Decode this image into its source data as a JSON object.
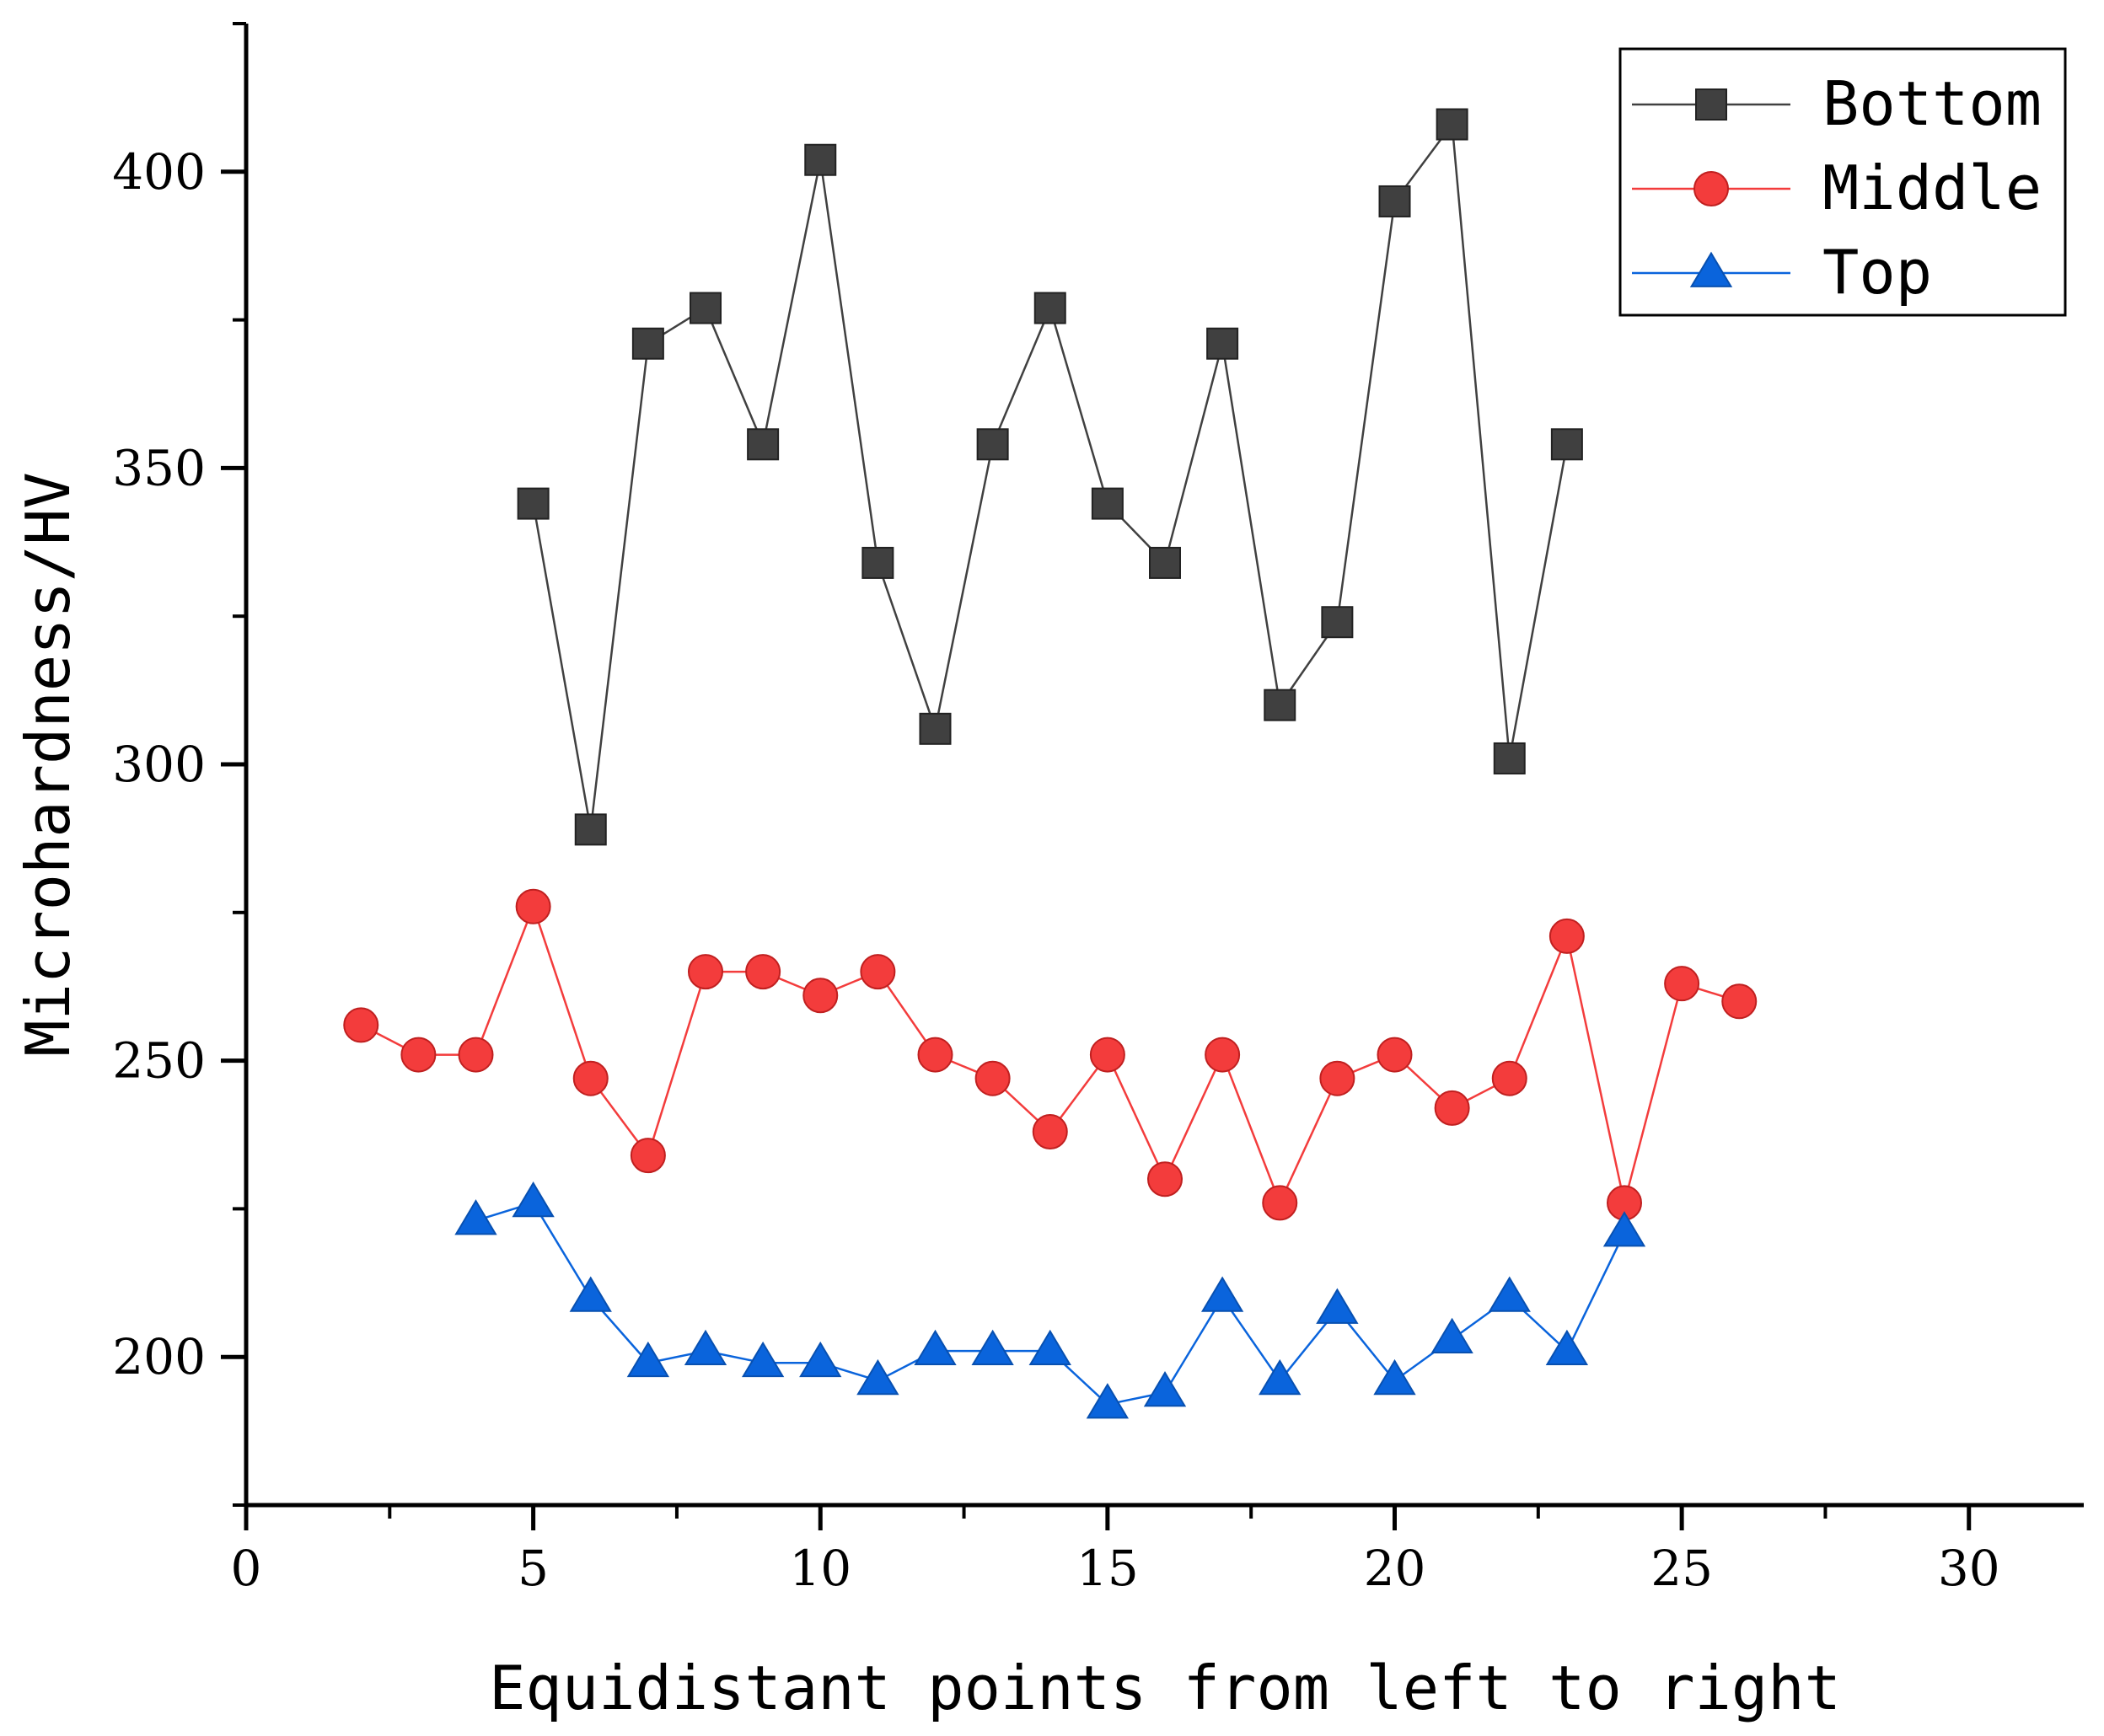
{
  "chart_data": {
    "type": "line",
    "title": "",
    "xlabel": "Equidistant points from left to right",
    "ylabel": "Microhardness/HV",
    "xlim": [
      0,
      32
    ],
    "ylim": [
      175,
      425
    ],
    "x_ticks": [
      0,
      5,
      10,
      15,
      20,
      25,
      30
    ],
    "x_tick_labels": [
      "0",
      "5",
      "10",
      "15",
      "20",
      "25",
      "30"
    ],
    "y_ticks": [
      200,
      250,
      300,
      350,
      400
    ],
    "y_tick_labels": [
      "200",
      "250",
      "300",
      "350",
      "400"
    ],
    "grid": false,
    "legend_position": "top-right",
    "series": [
      {
        "name": "Bottom",
        "color": "#404040",
        "marker": "square",
        "x": [
          5,
          6,
          7,
          8,
          9,
          10,
          11,
          12,
          13,
          14,
          15,
          16,
          17,
          18,
          19,
          20,
          21,
          22,
          23
        ],
        "y": [
          344,
          289,
          371,
          377,
          354,
          402,
          334,
          306,
          354,
          377,
          344,
          334,
          371,
          310,
          324,
          395,
          408,
          301,
          354
        ]
      },
      {
        "name": "Middle",
        "color": "#f33c3c",
        "marker": "circle",
        "x": [
          2,
          3,
          4,
          5,
          6,
          7,
          8,
          9,
          10,
          11,
          12,
          13,
          14,
          15,
          16,
          17,
          18,
          19,
          20,
          21,
          22,
          23,
          24,
          25,
          26
        ],
        "y": [
          256,
          251,
          251,
          276,
          247,
          234,
          265,
          265,
          261,
          265,
          251,
          247,
          238,
          251,
          230,
          251,
          226,
          247,
          251,
          242,
          247,
          271,
          226,
          263,
          260
        ]
      },
      {
        "name": "Top",
        "color": "#0a64dc",
        "marker": "triangle",
        "x": [
          4,
          5,
          6,
          7,
          8,
          9,
          10,
          11,
          12,
          13,
          14,
          15,
          16,
          17,
          18,
          19,
          20,
          21,
          22,
          23,
          24
        ],
        "y": [
          223,
          226,
          210,
          199,
          201,
          199,
          199,
          196,
          201,
          201,
          201,
          192,
          194,
          210,
          196,
          208,
          196,
          203,
          210,
          201,
          221
        ]
      }
    ]
  }
}
